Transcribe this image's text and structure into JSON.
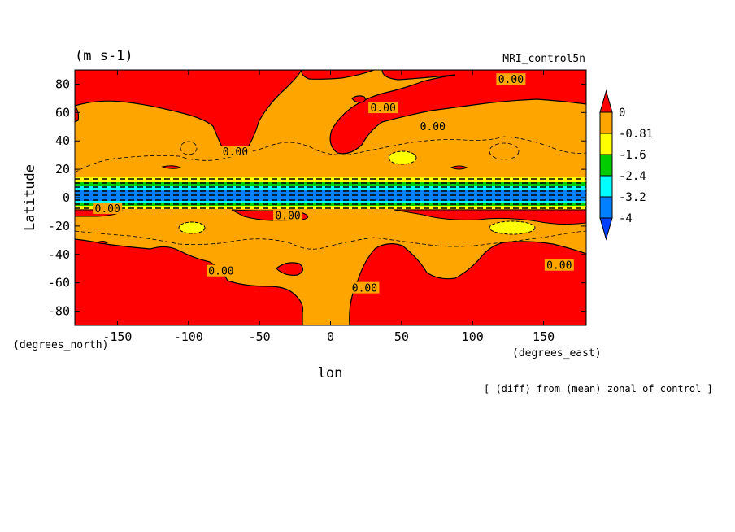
{
  "chart_data": {
    "type": "contour",
    "title_left": "(m s-1)",
    "title_right": "MRI_control5n",
    "xlabel": "lon",
    "ylabel": "Latitude",
    "x_unit_label": "(degrees_east)",
    "y_unit_label": "(degrees_north)",
    "footer": "[ (diff) from (mean) zonal of control ]",
    "xlim": [
      -180,
      180
    ],
    "ylim": [
      -90,
      90
    ],
    "x_ticks": [
      -150,
      -100,
      -50,
      0,
      50,
      100,
      150
    ],
    "x_tick_labels": [
      "-150",
      "-100",
      "-50",
      "0",
      "50",
      "100",
      "150"
    ],
    "y_ticks": [
      -80,
      -60,
      -40,
      -20,
      0,
      20,
      40,
      60,
      80
    ],
    "y_tick_labels": [
      "-80",
      "-60",
      "-40",
      "-20",
      "0",
      "20",
      "40",
      "60",
      "80"
    ],
    "colorbar": {
      "levels": [
        0,
        -0.81,
        -1.6,
        -2.4,
        -3.2,
        -4
      ],
      "labels": [
        "0",
        "-0.81",
        "-1.6",
        "-2.4",
        "-3.2",
        "-4"
      ],
      "colors": [
        "#ff0000",
        "#ffa500",
        "#ffff00",
        "#00cc00",
        "#00ffff",
        "#0080ff",
        "#0040ff"
      ]
    },
    "contour_labels": [
      {
        "text": "0.00",
        "lon": 37,
        "lat": 63
      },
      {
        "text": "0.00",
        "lon": 72,
        "lat": 50
      },
      {
        "text": "0.00",
        "lon": 127,
        "lat": 83
      },
      {
        "text": "0.00",
        "lon": -67,
        "lat": 32
      },
      {
        "text": "0.00",
        "lon": -157,
        "lat": -8
      },
      {
        "text": "0.00",
        "lon": -30,
        "lat": -13
      },
      {
        "text": "0.00",
        "lon": -77,
        "lat": -52
      },
      {
        "text": "0.00",
        "lon": 24,
        "lat": -64
      },
      {
        "text": "0.00",
        "lon": 161,
        "lat": -48
      }
    ]
  },
  "colors": {
    "red": "#ff0000",
    "orange": "#ffa500",
    "yellow": "#ffff00",
    "green": "#00cc00",
    "cyan": "#00ffff",
    "blue": "#0080ff",
    "deepblue": "#0040ff"
  }
}
